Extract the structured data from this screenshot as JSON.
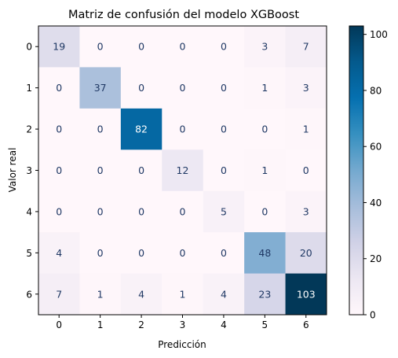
{
  "chart_data": {
    "type": "heatmap",
    "title": "Matriz de confusión del modelo XGBoost",
    "xlabel": "Predicción",
    "ylabel": "Valor real",
    "x_tick_labels": [
      "0",
      "1",
      "2",
      "3",
      "4",
      "5",
      "6"
    ],
    "y_tick_labels": [
      "0",
      "1",
      "2",
      "3",
      "4",
      "5",
      "6"
    ],
    "matrix": [
      [
        19,
        0,
        0,
        0,
        0,
        3,
        7
      ],
      [
        0,
        37,
        0,
        0,
        0,
        1,
        3
      ],
      [
        0,
        0,
        82,
        0,
        0,
        0,
        1
      ],
      [
        0,
        0,
        0,
        12,
        0,
        1,
        0
      ],
      [
        0,
        0,
        0,
        0,
        5,
        0,
        3
      ],
      [
        4,
        0,
        0,
        0,
        0,
        48,
        20
      ],
      [
        7,
        1,
        4,
        1,
        4,
        23,
        103
      ]
    ],
    "colormap": "PuBu",
    "color_range": [
      0,
      103
    ],
    "colorbar_ticks": [
      0,
      20,
      40,
      60,
      80,
      100
    ],
    "grid": false
  }
}
